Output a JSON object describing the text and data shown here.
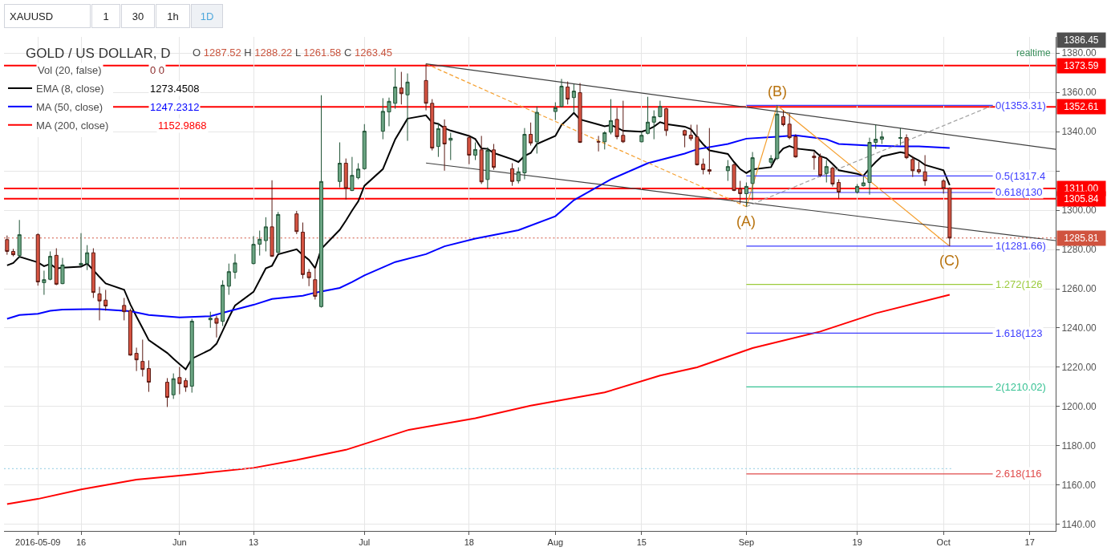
{
  "chart_data": {
    "type": "candlestick",
    "title": "GOLD / US DOLLAR, D",
    "subtitle": "O 1287.52 H 1288.22 L 1261.58 C 1263.45",
    "x": [
      "2016-05-04",
      "2016-05-05",
      "2016-05-06",
      "2016-05-09",
      "2016-05-10",
      "2016-05-11",
      "2016-05-12",
      "2016-05-13",
      "2016-05-16",
      "2016-05-17",
      "2016-05-18",
      "2016-05-19",
      "2016-05-20",
      "2016-05-23",
      "2016-05-24",
      "2016-05-25",
      "2016-05-26",
      "2016-05-27",
      "2016-05-30",
      "2016-05-31",
      "2016-06-01",
      "2016-06-02",
      "2016-06-03",
      "2016-06-06",
      "2016-06-07",
      "2016-06-08",
      "2016-06-09",
      "2016-06-10",
      "2016-06-13",
      "2016-06-14",
      "2016-06-15",
      "2016-06-16",
      "2016-06-17",
      "2016-06-20",
      "2016-06-21",
      "2016-06-22",
      "2016-06-23",
      "2016-06-24",
      "2016-06-27",
      "2016-06-28",
      "2016-06-29",
      "2016-06-30",
      "2016-07-01",
      "2016-07-04",
      "2016-07-05",
      "2016-07-06",
      "2016-07-07",
      "2016-07-08",
      "2016-07-11",
      "2016-07-12",
      "2016-07-13",
      "2016-07-14",
      "2016-07-15",
      "2016-07-18",
      "2016-07-19",
      "2016-07-20",
      "2016-07-21",
      "2016-07-22",
      "2016-07-25",
      "2016-07-26",
      "2016-07-27",
      "2016-07-28",
      "2016-07-29",
      "2016-08-01",
      "2016-08-02",
      "2016-08-03",
      "2016-08-04",
      "2016-08-05",
      "2016-08-08",
      "2016-08-09",
      "2016-08-10",
      "2016-08-11",
      "2016-08-12",
      "2016-08-15",
      "2016-08-16",
      "2016-08-17",
      "2016-08-18",
      "2016-08-19",
      "2016-08-22",
      "2016-08-23",
      "2016-08-24",
      "2016-08-25",
      "2016-08-26",
      "2016-08-29",
      "2016-08-30",
      "2016-08-31",
      "2016-09-01",
      "2016-09-02",
      "2016-09-05",
      "2016-09-06",
      "2016-09-07",
      "2016-09-08",
      "2016-09-09",
      "2016-09-12",
      "2016-09-13",
      "2016-09-14",
      "2016-09-15",
      "2016-09-16",
      "2016-09-19",
      "2016-09-20",
      "2016-09-21",
      "2016-09-22",
      "2016-09-23",
      "2016-09-26",
      "2016-09-27",
      "2016-09-28",
      "2016-09-29",
      "2016-09-30",
      "2016-10-03",
      "2016-10-04"
    ],
    "ohlc": [
      [
        1285.0,
        1287.1,
        1277.3,
        1279.0
      ],
      [
        1279.0,
        1280.3,
        1276.5,
        1277.3
      ],
      [
        1276.9,
        1295.0,
        1275.7,
        1287.5
      ],
      [
        1287.52,
        1288.22,
        1261.58,
        1263.45
      ],
      [
        1263.1,
        1269.2,
        1256.9,
        1264.6
      ],
      [
        1264.8,
        1279.0,
        1264.3,
        1276.5
      ],
      [
        1277.0,
        1280.6,
        1261.8,
        1262.3
      ],
      [
        1262.6,
        1275.7,
        1262.3,
        1272.1
      ],
      [
        1272.1,
        1288.3,
        1271.6,
        1272.9
      ],
      [
        1272.9,
        1282.2,
        1269.5,
        1278.3
      ],
      [
        1278.3,
        1280.6,
        1255.3,
        1258.1
      ],
      [
        1257.4,
        1261.0,
        1243.9,
        1253.8
      ],
      [
        1254.2,
        1259.4,
        1248.8,
        1251.2
      ],
      [
        1251.5,
        1255.3,
        1243.9,
        1248.3
      ],
      [
        1248.8,
        1249.9,
        1225.9,
        1226.2
      ],
      [
        1227.1,
        1230.0,
        1218.1,
        1223.8
      ],
      [
        1223.0,
        1234.1,
        1215.3,
        1218.9
      ],
      [
        1219.4,
        1223.5,
        1207.5,
        1212.4
      ],
      [
        1212.4,
        1214.5,
        1199.8,
        1204.7
      ],
      [
        1206.0,
        1216.9,
        1203.9,
        1214.2
      ],
      [
        1214.8,
        1220.2,
        1206.3,
        1211.7
      ],
      [
        1213.2,
        1214.5,
        1207.5,
        1209.9
      ],
      [
        1210.4,
        1244.7,
        1207.1,
        1243.5
      ],
      [
        1244.2,
        1248.3,
        1240.1,
        1245.0
      ],
      [
        1244.9,
        1246.3,
        1235.2,
        1242.4
      ],
      [
        1243.4,
        1264.3,
        1241.0,
        1261.8
      ],
      [
        1261.3,
        1272.8,
        1256.9,
        1268.7
      ],
      [
        1268.4,
        1277.7,
        1265.1,
        1273.1
      ],
      [
        1272.8,
        1286.8,
        1272.4,
        1282.6
      ],
      [
        1282.7,
        1289.6,
        1276.9,
        1285.2
      ],
      [
        1284.5,
        1296.4,
        1279.0,
        1291.5
      ],
      [
        1291.5,
        1315.2,
        1276.2,
        1276.5
      ],
      [
        1278.5,
        1299.1,
        1278.2,
        1297.8
      ],
      [
        1298.1,
        1299.6,
        1287.8,
        1289.1
      ],
      [
        1288.8,
        1293.7,
        1265.1,
        1267.2
      ],
      [
        1268.4,
        1270.0,
        1261.3,
        1265.6
      ],
      [
        1264.6,
        1270.8,
        1254.5,
        1256.1
      ],
      [
        1250.9,
        1358.5,
        1250.4,
        1314.6
      ],
      [
        1314.6,
        1334.5,
        1311.6,
        1323.9
      ],
      [
        1323.9,
        1326.3,
        1305.4,
        1311.1
      ],
      [
        1310.0,
        1327.1,
        1309.7,
        1317.7
      ],
      [
        1316.5,
        1323.9,
        1315.7,
        1320.9
      ],
      [
        1321.1,
        1343.8,
        1320.6,
        1340.2
      ],
      [
        1340.2,
        1357.0,
        1336.1,
        1350.3
      ],
      [
        1350.0,
        1357.3,
        1342.7,
        1355.4
      ],
      [
        1354.4,
        1372.4,
        1351.6,
        1362.7
      ],
      [
        1362.2,
        1370.4,
        1353.8,
        1359.3
      ],
      [
        1358.7,
        1369.6,
        1335.3,
        1365.2
      ],
      [
        1366.0,
        1374.5,
        1350.8,
        1354.4
      ],
      [
        1354.4,
        1356.5,
        1330.4,
        1331.6
      ],
      [
        1332.4,
        1344.3,
        1327.1,
        1341.5
      ],
      [
        1342.7,
        1346.2,
        1320.1,
        1333.7
      ],
      [
        1335.6,
        1339.4,
        1325.5,
        1336.6
      ],
      [
        1336.9,
        1338.1,
        1323.4,
        1328.0
      ],
      [
        1328.0,
        1334.5,
        1325.5,
        1330.9
      ],
      [
        1330.7,
        1337.8,
        1313.3,
        1314.4
      ],
      [
        1315.6,
        1332.0,
        1310.8,
        1330.4
      ],
      [
        1330.7,
        1333.7,
        1320.6,
        1321.8
      ],
      [
        1321.1,
        1323.9,
        1312.4,
        1314.6
      ],
      [
        1314.9,
        1321.8,
        1313.6,
        1319.5
      ],
      [
        1319.0,
        1341.8,
        1315.7,
        1338.6
      ],
      [
        1338.6,
        1344.6,
        1332.9,
        1334.2
      ],
      [
        1334.8,
        1352.8,
        1328.8,
        1349.8
      ],
      [
        1350.2,
        1354.9,
        1345.9,
        1352.1
      ],
      [
        1352.8,
        1366.8,
        1352.4,
        1363.1
      ],
      [
        1362.7,
        1365.5,
        1353.8,
        1356.5
      ],
      [
        1357.3,
        1364.2,
        1350.0,
        1360.6
      ],
      [
        1359.8,
        1364.7,
        1334.2,
        1334.5
      ],
      [
        1334.9,
        1337.8,
        1329.9,
        1334.7
      ],
      [
        1334.8,
        1340.2,
        1330.9,
        1339.4
      ],
      [
        1339.7,
        1356.5,
        1338.6,
        1345.6
      ],
      [
        1346.2,
        1352.1,
        1336.1,
        1337.4
      ],
      [
        1338.1,
        1355.7,
        1334.2,
        1334.8
      ],
      [
        1334.8,
        1340.2,
        1334.5,
        1338.1
      ],
      [
        1339.1,
        1357.7,
        1338.6,
        1344.8
      ],
      [
        1344.8,
        1350.8,
        1336.1,
        1347.6
      ],
      [
        1347.6,
        1355.7,
        1347.2,
        1352.8
      ],
      [
        1351.6,
        1352.1,
        1337.8,
        1340.5
      ],
      [
        1340.5,
        1341.0,
        1332.0,
        1338.1
      ],
      [
        1338.2,
        1343.5,
        1335.3,
        1336.4
      ],
      [
        1337.3,
        1343.5,
        1322.7,
        1323.1
      ],
      [
        1323.4,
        1326.3,
        1318.2,
        1320.6
      ],
      [
        1320.6,
        1341.8,
        1318.2,
        1319.8
      ],
      [
        1320.1,
        1325.5,
        1314.9,
        1322.2
      ],
      [
        1323.1,
        1323.9,
        1309.7,
        1310.0
      ],
      [
        1310.8,
        1314.9,
        1303.5,
        1308.4
      ],
      [
        1308.4,
        1314.1,
        1301.8,
        1312.1
      ],
      [
        1313.6,
        1329.6,
        1305.1,
        1326.7
      ],
      [
        1324.4,
        1328.0,
        1323.1,
        1326.3
      ],
      [
        1326.3,
        1353.31,
        1325.5,
        1348.9
      ],
      [
        1347.6,
        1350.8,
        1342.7,
        1343.5
      ],
      [
        1343.8,
        1349.2,
        1336.1,
        1336.9
      ],
      [
        1337.4,
        1338.6,
        1326.7,
        1327.1
      ],
      [
        1327.5,
        1329.6,
        1320.6,
        1326.7
      ],
      [
        1327.1,
        1328.8,
        1316.9,
        1317.7
      ],
      [
        1318.7,
        1325.5,
        1314.1,
        1322.2
      ],
      [
        1321.4,
        1322.2,
        1312.0,
        1313.3
      ],
      [
        1314.1,
        1315.7,
        1305.9,
        1309.2
      ],
      [
        1309.2,
        1313.3,
        1308.4,
        1312.1
      ],
      [
        1312.4,
        1317.3,
        1312.0,
        1313.9
      ],
      [
        1314.1,
        1336.9,
        1307.9,
        1334.5
      ],
      [
        1334.5,
        1343.5,
        1331.2,
        1336.1
      ],
      [
        1336.1,
        1340.2,
        1333.7,
        1337.3
      ],
      [
        1336.6,
        1341.8,
        1332.9,
        1336.9
      ],
      [
        1336.9,
        1338.6,
        1326.0,
        1326.7
      ],
      [
        1325.8,
        1327.5,
        1316.9,
        1320.1
      ],
      [
        1320.6,
        1324.7,
        1318.5,
        1319.5
      ],
      [
        1319.5,
        1328.0,
        1312.4,
        1314.9
      ],
      [
        1314.9,
        1315.7,
        1308.4,
        1311.1
      ],
      [
        1311.1,
        1311.6,
        1281.66,
        1285.81
      ]
    ],
    "series": [
      {
        "type": "line",
        "name": "EMA (8, close)",
        "color": "#000000",
        "values": [
          1271.9,
          1273.1,
          1276.3,
          1273.4508,
          1271.5,
          1272.6,
          1270.3,
          1270.7,
          1271.2,
          1272.8,
          1269.5,
          1266.0,
          1262.7,
          1259.5,
          1252.1,
          1245.8,
          1239.9,
          1233.8,
          1227.3,
          1224.4,
          1221.6,
          1219.0,
          1224.4,
          1229.0,
          1232.0,
          1238.6,
          1245.3,
          1251.5,
          1258.4,
          1264.4,
          1270.4,
          1271.7,
          1277.5,
          1280.1,
          1277.2,
          1274.7,
          1270.5,
          1280.3,
          1290.0,
          1294.7,
          1299.8,
          1304.5,
          1312.4,
          1320.9,
          1328.5,
          1336.1,
          1341.3,
          1346.6,
          1348.3,
          1344.6,
          1343.9,
          1341.7,
          1340.5,
          1337.8,
          1336.2,
          1331.4,
          1331.2,
          1329.1,
          1325.9,
          1324.5,
          1327.6,
          1329.1,
          1333.7,
          1337.8,
          1343.4,
          1346.3,
          1349.5,
          1346.2,
          1343.6,
          1342.7,
          1343.3,
          1342.0,
          1340.4,
          1339.9,
          1341.0,
          1342.5,
          1344.8,
          1343.8,
          1342.5,
          1341.2,
          1337.2,
          1333.5,
          1330.4,
          1328.6,
          1324.5,
          1320.9,
          1318.9,
          1320.7,
          1321.9,
          1327.9,
          1331.4,
          1332.6,
          1331.4,
          1330.3,
          1327.5,
          1326.4,
          1323.5,
          1320.3,
          1318.5,
          1317.5,
          1321.2,
          1324.5,
          1327.4,
          1329.5,
          1328.9,
          1326.9,
          1325.3,
          1323.0,
          1320.3,
          1312.7
        ]
      },
      {
        "type": "line",
        "name": "MA (50, close)",
        "color": "#0000ff",
        "x": [
          "2016-05-04",
          "2016-05-06",
          "2016-05-09",
          "2016-05-11",
          "2016-05-13",
          "2016-05-17",
          "2016-05-19",
          "2016-05-24",
          "2016-05-27",
          "2016-06-01",
          "2016-06-06",
          "2016-06-09",
          "2016-06-13",
          "2016-06-16",
          "2016-06-21",
          "2016-06-23",
          "2016-06-27",
          "2016-06-29",
          "2016-07-01",
          "2016-07-06",
          "2016-07-11",
          "2016-07-14",
          "2016-07-19",
          "2016-07-26",
          "2016-08-01",
          "2016-08-04",
          "2016-08-10",
          "2016-08-16",
          "2016-08-22",
          "2016-08-24",
          "2016-08-29",
          "2016-09-01",
          "2016-09-06",
          "2016-09-09",
          "2016-09-14",
          "2016-09-16",
          "2016-09-21",
          "2016-09-26",
          "2016-09-29",
          "2016-10-04"
        ],
        "values": [
          1244.7,
          1246.6,
          1247.2312,
          1248.8,
          1249.4,
          1249.6,
          1249.6,
          1248.6,
          1246.6,
          1245.4,
          1246.0,
          1248.6,
          1251.8,
          1254.8,
          1256.4,
          1258.0,
          1260.4,
          1263.4,
          1266.8,
          1273.6,
          1277.6,
          1281.6,
          1285.5,
          1289.8,
          1296.9,
          1305.1,
          1315.7,
          1323.9,
          1328.8,
          1331.0,
          1333.7,
          1336.4,
          1337.4,
          1338.1,
          1336.1,
          1333.7,
          1332.9,
          1332.5,
          1332.5,
          1331.7
        ]
      },
      {
        "type": "line",
        "name": "MA (200, close)",
        "color": "#ff0000",
        "x": [
          "2016-05-04",
          "2016-05-09",
          "2016-05-16",
          "2016-05-25",
          "2016-06-02",
          "2016-06-13",
          "2016-06-20",
          "2016-06-28",
          "2016-07-08",
          "2016-07-19",
          "2016-07-28",
          "2016-08-09",
          "2016-08-18",
          "2016-08-24",
          "2016-09-02",
          "2016-09-13",
          "2016-09-22",
          "2016-10-04"
        ],
        "values": [
          1150.4,
          1152.9868,
          1157.8,
          1162.8,
          1165.2,
          1168.8,
          1172.8,
          1178.0,
          1188.0,
          1194.1,
          1200.5,
          1207.2,
          1215.8,
          1220.0,
          1229.8,
          1238.2,
          1247.5,
          1256.9
        ]
      },
      {
        "type": "line",
        "color": "#f5a030",
        "line_style": "dashed",
        "x": [
          "2016-07-11",
          "2016-09-01"
        ],
        "values": [
          1374.5,
          1301.8
        ]
      },
      {
        "type": "line",
        "color": "#f5a030",
        "x": [
          "2016-09-01",
          "2016-09-06",
          "2016-10-04"
        ],
        "values": [
          1301.8,
          1353.31,
          1281.66
        ]
      },
      {
        "type": "line",
        "color": "#404040",
        "x": [
          "2016-07-11",
          "2016-10-21T05:00"
        ],
        "values": [
          1374.5,
          1331.0
        ]
      },
      {
        "type": "line",
        "color": "#404040",
        "x": [
          "2016-07-11",
          "2016-10-21T05:00"
        ],
        "values": [
          1324.0,
          1284.5
        ]
      },
      {
        "type": "line",
        "color": "#a0a0a0",
        "line_style": "dashed",
        "x": [
          "2016-09-01",
          "2016-10-11"
        ],
        "values": [
          1301.8,
          1353.31
        ]
      },
      {
        "type": "line",
        "color": "#3d3dff",
        "x": [
          "2016-09-01",
          "2016-10-11"
        ],
        "values": [
          1353.31,
          1353.31
        ]
      },
      {
        "type": "line",
        "color": "#3d3dff",
        "x": [
          "2016-09-01",
          "2016-10-11"
        ],
        "values": [
          1317.4,
          1317.4
        ]
      },
      {
        "type": "line",
        "color": "#3d3dff",
        "x": [
          "2016-09-01",
          "2016-10-11"
        ],
        "values": [
          1309.0,
          1309.0
        ]
      },
      {
        "type": "line",
        "color": "#3d3dff",
        "x": [
          "2016-09-01",
          "2016-10-11"
        ],
        "values": [
          1281.66,
          1281.66
        ]
      },
      {
        "type": "line",
        "color": "#9bcb3c",
        "x": [
          "2016-09-01",
          "2016-10-11"
        ],
        "values": [
          1262.2,
          1262.2
        ]
      },
      {
        "type": "line",
        "color": "#3d3dff",
        "x": [
          "2016-09-01",
          "2016-10-11"
        ],
        "values": [
          1237.4,
          1237.4
        ]
      },
      {
        "type": "line",
        "color": "#36c293",
        "x": [
          "2016-09-01",
          "2016-10-11"
        ],
        "values": [
          1210.02,
          1210.02
        ]
      },
      {
        "type": "line",
        "color": "#e04b4b",
        "x": [
          "2016-09-01",
          "2016-10-11"
        ],
        "values": [
          1165.7,
          1165.7
        ]
      },
      {
        "type": "line",
        "color": "#a6d5e8",
        "line_style": "dotted",
        "x": [
          "2016-05-03T12:00",
          "2016-10-04T06:00"
        ],
        "values": [
          1168.4,
          1168.4
        ]
      }
    ],
    "xlim": [
      "2016-05-03T12:00",
      "2016-10-21T05:00"
    ],
    "xticks": [
      {
        "value": "2016-05-09",
        "label": "2016-05-09"
      },
      {
        "value": "2016-05-16",
        "label": "16"
      },
      {
        "value": "2016-06-01",
        "label": "Jun"
      },
      {
        "value": "2016-06-13",
        "label": "13"
      },
      {
        "value": "2016-07-01",
        "label": "Jul"
      },
      {
        "value": "2016-07-18",
        "label": "18"
      },
      {
        "value": "2016-08-01",
        "label": "Aug"
      },
      {
        "value": "2016-08-15",
        "label": "15"
      },
      {
        "value": "2016-09-01",
        "label": "Sep"
      },
      {
        "value": "2016-09-19",
        "label": "19"
      },
      {
        "value": "2016-10-03",
        "label": "Oct"
      },
      {
        "value": "2016-10-17",
        "label": "17"
      }
    ],
    "ylim": [
      1136.7,
      1388.2
    ],
    "yticks": [
      {
        "value": 1140,
        "label": "1140.00"
      },
      {
        "value": 1160,
        "label": "1160.00"
      },
      {
        "value": 1180,
        "label": "1180.00"
      },
      {
        "value": 1200,
        "label": "1200.00"
      },
      {
        "value": 1220,
        "label": "1220.00"
      },
      {
        "value": 1240,
        "label": "1240.00"
      },
      {
        "value": 1260,
        "label": "1260.00"
      },
      {
        "value": 1280,
        "label": "1280.00"
      },
      {
        "value": 1300,
        "label": "1300.00"
      },
      {
        "value": 1320,
        "label": null
      },
      {
        "value": 1340,
        "label": "1340.00"
      },
      {
        "value": 1360,
        "label": "1360.00"
      },
      {
        "value": 1380,
        "label": "1380.00"
      }
    ],
    "ref_lines": [
      {
        "axis": "y",
        "value": 1373.59,
        "label": "1373.59",
        "color": "#ff0000"
      },
      {
        "axis": "y",
        "value": 1352.61,
        "label": "1352.61",
        "color": "#ff0000"
      },
      {
        "axis": "y",
        "value": 1311.0,
        "label": "1311.00",
        "color": "#ff0000"
      },
      {
        "axis": "y",
        "value": 1305.84,
        "label": "1305.84",
        "color": "#ff0000"
      },
      {
        "axis": "y",
        "value": 1285.81,
        "label": "1285.81",
        "color": "#d0533f",
        "line_style": "dotted"
      }
    ],
    "annotations": [
      "XAUUSD",
      "1",
      "30",
      "1h",
      "1D",
      "realtime",
      "Vol (20, false)",
      "0 0",
      "1273.4508",
      "1247.2312",
      "1152.9868",
      "1386.45",
      {
        "text": "(A)",
        "x": "2016-09-01",
        "y": 1301.8
      },
      {
        "text": "(B)",
        "x": "2016-09-06",
        "y": 1353.31
      },
      {
        "text": "(C)",
        "x": "2016-10-04",
        "y": 1281.66
      },
      {
        "text": "0(1353.31)",
        "x": "2016-10-11",
        "y": 1353.31
      },
      {
        "text": "0.5(1317.4",
        "x": "2016-10-11",
        "y": 1317.4
      },
      {
        "text": "0.618(130",
        "x": "2016-10-11",
        "y": 1309.0
      },
      {
        "text": "1(1281.66)",
        "x": "2016-10-11",
        "y": 1281.66
      },
      {
        "text": "1.272(126",
        "x": "2016-10-11",
        "y": 1262.2
      },
      {
        "text": "1.618(123",
        "x": "2016-10-11",
        "y": 1237.4
      },
      {
        "text": "2(1210.02)",
        "x": "2016-10-11",
        "y": 1210.02
      },
      {
        "text": "2.618(116",
        "x": "2016-10-11",
        "y": 1165.7
      }
    ],
    "grid": true,
    "legend": "top left"
  }
}
